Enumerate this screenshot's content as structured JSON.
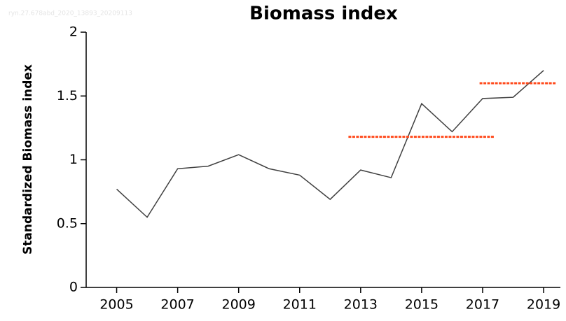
{
  "chart_data": {
    "type": "line",
    "title": "Biomass index",
    "watermark": "ryn.27.678abd_2020_13893_20209113",
    "y_label": "Standardized Biomass index",
    "x": [
      2005,
      2006,
      2007,
      2008,
      2009,
      2010,
      2011,
      2012,
      2013,
      2014,
      2015,
      2016,
      2017,
      2018,
      2019
    ],
    "series": [
      {
        "color": "#404040",
        "values": [
          0.77,
          0.55,
          0.93,
          0.95,
          1.04,
          0.93,
          0.88,
          0.69,
          0.92,
          0.86,
          1.44,
          1.22,
          1.48,
          1.49,
          1.7
        ]
      }
    ],
    "reference_lines": [
      {
        "color": "#ff4a1c",
        "x": [
          2012.6,
          2017.4
        ],
        "values": [
          1.18,
          1.18
        ]
      },
      {
        "color": "#ff4a1c",
        "x": [
          2016.9,
          2019.4
        ],
        "values": [
          1.6,
          1.6
        ]
      }
    ],
    "xlim": [
      2004,
      2019.55
    ],
    "xticks": [
      2005,
      2007,
      2009,
      2011,
      2013,
      2015,
      2017,
      2019
    ],
    "ylim": [
      0,
      2
    ],
    "yticks": [
      0,
      0.5,
      1,
      1.5,
      2
    ]
  }
}
